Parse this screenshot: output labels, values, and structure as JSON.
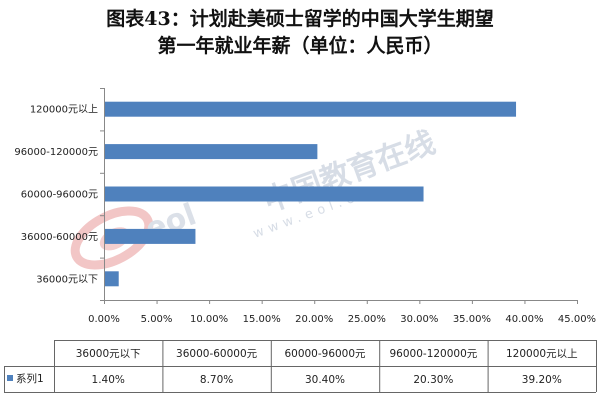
{
  "title_line1": "图表43：计划赴美硕士留学的中国大学生期望",
  "title_line2": "第一年就业年薪（单位：人民币）",
  "watermark": {
    "brand": "中国教育在线",
    "url": "www.eol.cn",
    "logo": "eol"
  },
  "chart_data": {
    "type": "bar",
    "orientation": "horizontal",
    "categories": [
      "36000元以下",
      "36000-60000元",
      "60000-96000元",
      "96000-120000元",
      "120000元以上"
    ],
    "series": [
      {
        "name": "系列1",
        "values": [
          1.4,
          8.7,
          30.4,
          20.3,
          39.2
        ],
        "color": "#4f81bd"
      }
    ],
    "value_labels": [
      "1.40%",
      "8.70%",
      "30.40%",
      "20.30%",
      "39.20%"
    ],
    "xlim": [
      0,
      45
    ],
    "xticks": [
      0,
      5,
      10,
      15,
      20,
      25,
      30,
      35,
      40,
      45
    ],
    "xtick_labels": [
      "0.00%",
      "5.00%",
      "10.00%",
      "15.00%",
      "20.00%",
      "25.00%",
      "30.00%",
      "35.00%",
      "40.00%",
      "45.00%"
    ],
    "grid": false,
    "legend": "table-bottom",
    "data_table": true
  }
}
